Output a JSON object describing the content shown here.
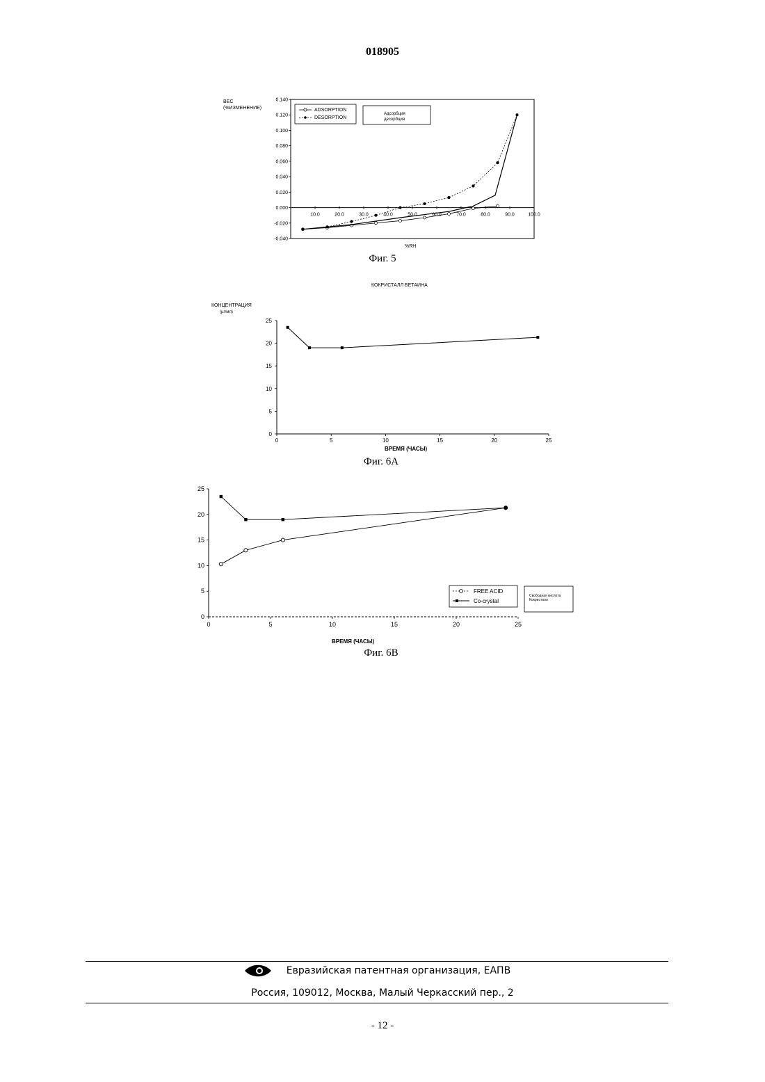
{
  "header": {
    "doc_number": "018905"
  },
  "figures": [
    {
      "caption": "Фиг. 5"
    },
    {
      "caption": "Фиг. 6A"
    },
    {
      "caption": "Фиг. 6B"
    }
  ],
  "chart_data": [
    {
      "type": "line",
      "ylabel": "BEC\n(%ИЗМЕНЕНИЕ)",
      "xlabel": "%RH",
      "xlim": [
        0,
        100
      ],
      "ylim": [
        -0.04,
        0.14
      ],
      "x_ticks": [
        "10.0",
        "20.0",
        "30.0",
        "40.0",
        "50.0",
        "60.0",
        "70.0",
        "80.0",
        "90.0",
        "100.0"
      ],
      "y_ticks": [
        "0.140",
        "0.120",
        "0.100",
        "0.080",
        "0.060",
        "0.040",
        "0.020",
        "0.000",
        "-0.020",
        "-0.040"
      ],
      "legend": [
        "ADSORPTION",
        "DESORPTION"
      ],
      "legend_translation": [
        "Адсорбция",
        "десорбция"
      ],
      "series": [
        {
          "name": "ADSORPTION",
          "x": [
            5,
            15,
            25,
            35,
            45,
            55,
            65,
            75,
            85
          ],
          "y": [
            -0.028,
            -0.026,
            -0.023,
            -0.02,
            -0.017,
            -0.013,
            -0.008,
            -0.001,
            0.002
          ]
        },
        {
          "name": "DESORPTION",
          "x": [
            5,
            15,
            25,
            35,
            45,
            55,
            65,
            75,
            85,
            93
          ],
          "y": [
            -0.028,
            -0.025,
            -0.018,
            -0.01,
            0.0,
            0.005,
            0.013,
            0.028,
            0.058,
            0.12
          ]
        },
        {
          "name": "",
          "x": [
            5,
            25,
            45,
            65,
            75,
            84,
            93
          ],
          "y": [
            -0.028,
            -0.022,
            -0.013,
            -0.005,
            0.002,
            0.016,
            0.12
          ]
        }
      ]
    },
    {
      "type": "line",
      "title": "КОКРИСТАЛЛ БЕТАИНА",
      "ylabel": "КОНЦЕНТРАЦИЯ\n(µг/мл)",
      "xlabel": "ВРЕМЯ (ЧАСЫ)",
      "xlim": [
        0,
        25
      ],
      "ylim": [
        0,
        25
      ],
      "x_ticks": [
        "0",
        "5",
        "10",
        "15",
        "20",
        "25"
      ],
      "y_ticks": [
        "25",
        "20",
        "15",
        "10",
        "5",
        "0"
      ],
      "series": [
        {
          "name": "",
          "x": [
            1,
            3,
            6,
            24
          ],
          "y": [
            23.5,
            19.0,
            19.0,
            21.3
          ]
        }
      ]
    },
    {
      "type": "line",
      "xlabel": "ВРЕМЯ (ЧАСЫ)",
      "xlim": [
        0,
        25
      ],
      "ylim": [
        0,
        25
      ],
      "x_ticks": [
        "0",
        "5",
        "10",
        "15",
        "20",
        "25"
      ],
      "y_ticks": [
        "25",
        "20",
        "15",
        "10",
        "5",
        "0"
      ],
      "legend": [
        "FREE ACID",
        "Co-crystal"
      ],
      "legend_translation": [
        "Свободная кислота",
        "Кокристалл"
      ],
      "series": [
        {
          "name": "FREE ACID",
          "x": [
            1,
            3,
            6,
            24
          ],
          "y": [
            10.3,
            13.0,
            15.0,
            21.3
          ]
        },
        {
          "name": "Co-crystal",
          "x": [
            1,
            3,
            6,
            24
          ],
          "y": [
            23.5,
            19.0,
            19.0,
            21.3
          ]
        }
      ]
    }
  ],
  "footer": {
    "org": "Евразийская патентная организация, ЕАПВ",
    "address": "Россия, 109012, Москва, Малый Черкасский пер., 2",
    "page": "- 12 -"
  },
  "icons": {
    "logo": "eapo-eye-logo"
  }
}
